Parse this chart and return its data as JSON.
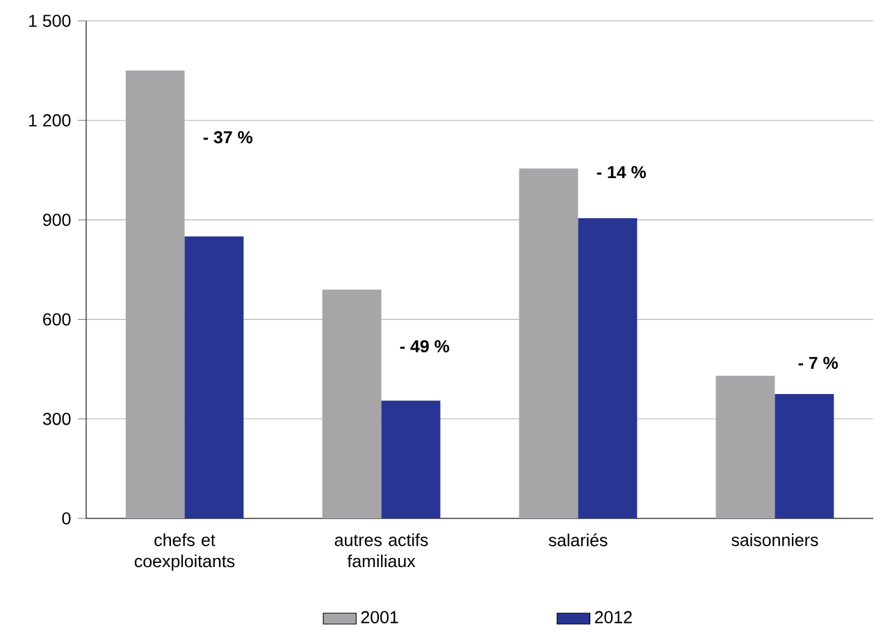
{
  "chart_data": {
    "type": "bar",
    "categories": [
      "chefs et coexploitants",
      "autres actifs familiaux",
      "salariés",
      "saisonniers"
    ],
    "series": [
      {
        "name": "2001",
        "color": "#a6a6a9",
        "values": [
          1350,
          690,
          1055,
          430
        ]
      },
      {
        "name": "2012",
        "color": "#283593",
        "values": [
          850,
          355,
          905,
          375
        ]
      }
    ],
    "ylim": [
      0,
      1500
    ],
    "yticks": [
      0,
      300,
      600,
      900,
      {
        "value": 1200,
        "label": "1 200"
      },
      {
        "value": 1500,
        "label": "1 500"
      }
    ],
    "grid": "y",
    "legend": "bottom",
    "annotations": [
      {
        "text": "- 37 %",
        "x": "chefs et coexploitants",
        "y": 1110
      },
      {
        "text": "- 49 %",
        "x": "autres actifs familiaux",
        "y": 480
      },
      {
        "text": "- 14 %",
        "x": "salariés",
        "y": 1005
      },
      {
        "text": "- 7 %",
        "x": "saisonniers",
        "y": 430
      }
    ]
  }
}
